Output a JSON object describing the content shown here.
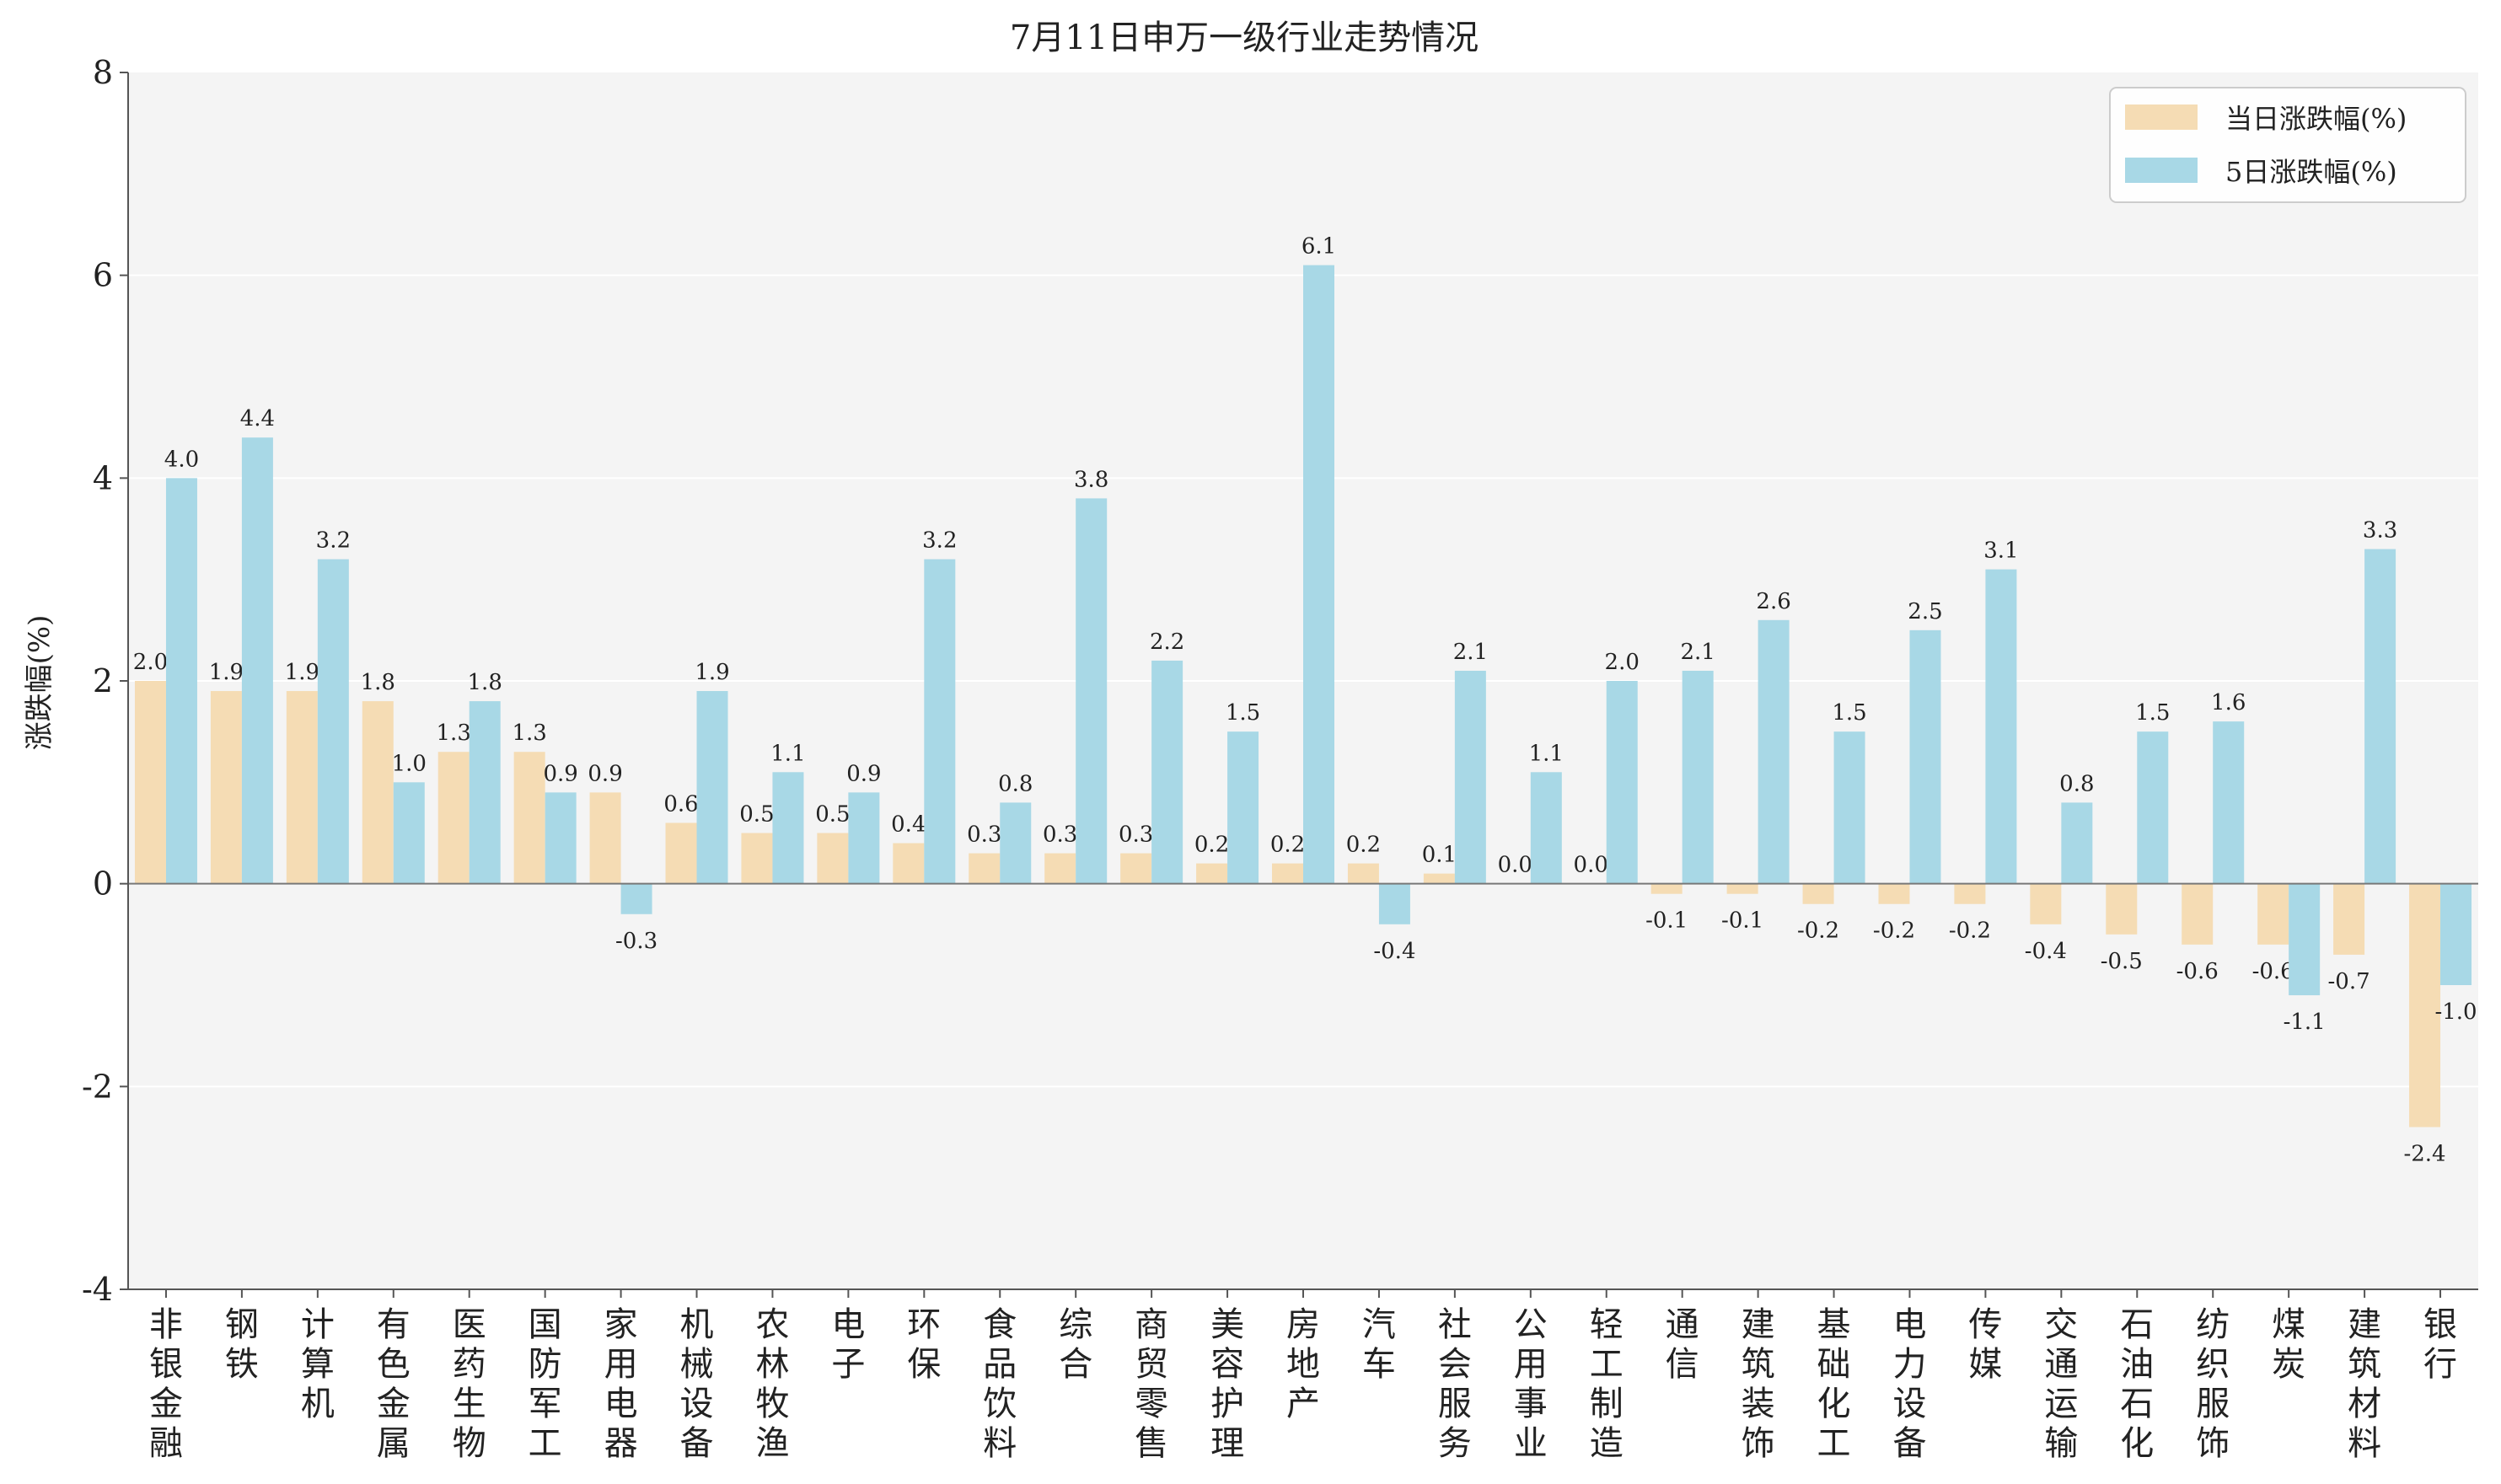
{
  "chart_data": {
    "type": "bar",
    "title": "7月11日申万一级行业走势情况",
    "xlabel": "",
    "ylabel": "涨跌幅(%)",
    "ylim": [
      -4,
      8
    ],
    "yticks": [
      -4,
      -2,
      0,
      2,
      4,
      6,
      8
    ],
    "grid": true,
    "legend_position": "top-right",
    "categories": [
      "非银金融",
      "钢铁",
      "计算机",
      "有色金属",
      "医药生物",
      "国防军工",
      "家用电器",
      "机械设备",
      "农林牧渔",
      "电子",
      "环保",
      "食品饮料",
      "综合",
      "商贸零售",
      "美容护理",
      "房地产",
      "汽车",
      "社会服务",
      "公用事业",
      "轻工制造",
      "通信",
      "建筑装饰",
      "基础化工",
      "电力设备",
      "传媒",
      "交通运输",
      "石油石化",
      "纺织服饰",
      "煤炭",
      "建筑材料",
      "银行"
    ],
    "series": [
      {
        "name": "当日涨跌幅(%)",
        "color": "#f5dcb4",
        "values": [
          2.0,
          1.9,
          1.9,
          1.8,
          1.3,
          1.3,
          0.9,
          0.6,
          0.5,
          0.5,
          0.4,
          0.3,
          0.3,
          0.3,
          0.2,
          0.2,
          0.2,
          0.1,
          0.0,
          0.0,
          -0.1,
          -0.1,
          -0.2,
          -0.2,
          -0.2,
          -0.4,
          -0.5,
          -0.6,
          -0.6,
          -0.7,
          -2.4
        ]
      },
      {
        "name": "5日涨跌幅(%)",
        "color": "#a8d8e6",
        "values": [
          4.0,
          4.4,
          3.2,
          1.0,
          1.8,
          0.9,
          -0.3,
          1.9,
          1.1,
          0.9,
          3.2,
          0.8,
          3.8,
          2.2,
          1.5,
          6.1,
          -0.4,
          2.1,
          1.1,
          2.0,
          2.1,
          2.6,
          1.5,
          2.5,
          3.1,
          0.8,
          1.5,
          1.6,
          -1.1,
          3.3,
          -1.0
        ]
      }
    ],
    "colors": {
      "plot_background": "#f4f4f4",
      "grid": "#ffffff",
      "axis": "#555555",
      "text": "#222222"
    }
  }
}
